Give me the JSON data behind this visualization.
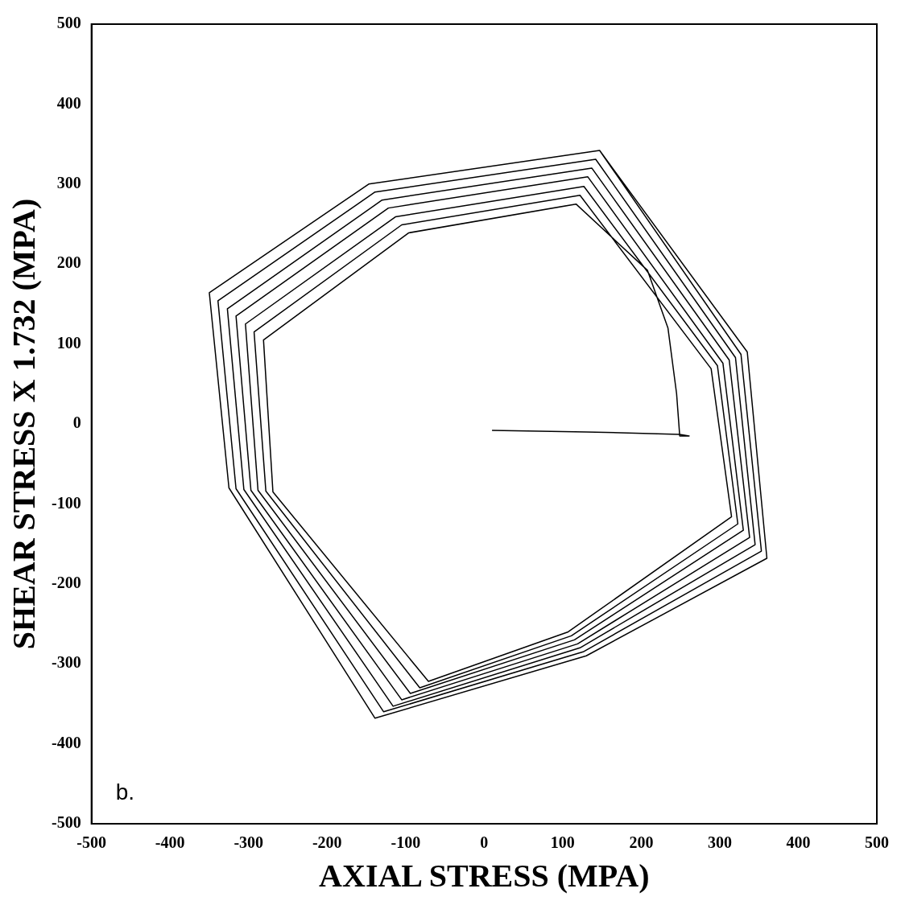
{
  "chart_data": {
    "type": "line",
    "xlabel": "AXIAL STRESS (MPA)",
    "ylabel": "SHEAR STRESS X 1.732 (MPA)",
    "annotations": [
      "b."
    ],
    "xlim": [
      -500,
      500
    ],
    "ylim": [
      -500,
      500
    ],
    "xticks": [
      -500,
      -400,
      -300,
      -200,
      -100,
      0,
      100,
      200,
      300,
      400,
      500
    ],
    "yticks": [
      -500,
      -400,
      -300,
      -200,
      -100,
      0,
      100,
      200,
      300,
      400,
      500
    ],
    "grid": false,
    "legend": false,
    "marker": "none",
    "line_style": "solid",
    "series": [
      {
        "color": "#000000",
        "x": [
          10,
          130,
          249,
          261,
          249,
          245,
          234,
          208,
          117,
          -96,
          -281,
          -269,
          -71,
          107,
          315,
          289,
          122,
          -105,
          -293,
          -278,
          -82,
          111,
          323,
          297,
          127,
          -113,
          -304,
          -288,
          -94,
          115,
          330,
          304,
          132,
          -122,
          -316,
          -297,
          -105,
          119,
          338,
          312,
          137,
          -130,
          -327,
          -306,
          -116,
          122,
          345,
          320,
          142,
          -139,
          -339,
          -316,
          -128,
          126,
          353,
          327,
          147,
          -147,
          -350,
          -325,
          -139,
          130,
          360,
          335,
          147
        ],
        "values": [
          -8,
          -10,
          -13,
          -15,
          -15,
          38,
          120,
          192,
          275,
          239,
          105,
          -85,
          -322,
          -260,
          -116,
          69,
          286,
          249,
          115,
          -84,
          -330,
          -265,
          -125,
          73,
          297,
          259,
          125,
          -83,
          -337,
          -270,
          -133,
          76,
          309,
          270,
          135,
          -83,
          -345,
          -275,
          -142,
          80,
          320,
          280,
          144,
          -82,
          -353,
          -280,
          -151,
          83,
          331,
          290,
          154,
          -81,
          -360,
          -285,
          -159,
          87,
          342,
          300,
          164,
          -80,
          -368,
          -290,
          -168,
          90,
          342
        ]
      }
    ]
  }
}
